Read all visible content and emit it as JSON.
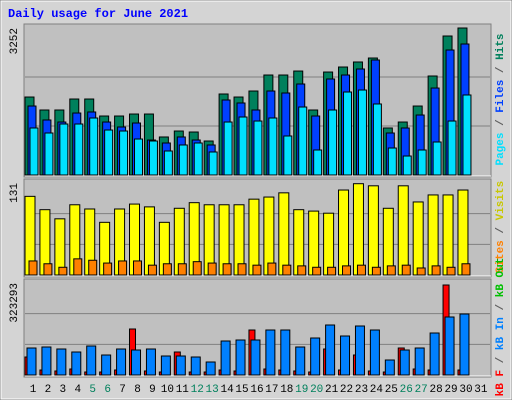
{
  "chart_data": [
    {
      "type": "bar",
      "title": "Daily usage for June 2021",
      "ylim": [
        0,
        3252
      ],
      "yticks": [
        3252
      ],
      "grid_lines": [
        1084,
        2168
      ],
      "legend_separator": " / ",
      "series": [
        {
          "name": "Pages",
          "color": "#00e0ff",
          "values": [
            1040,
            929,
            1128,
            1128,
            1261,
            995,
            973,
            796,
            752,
            531,
            664,
            708,
            509,
            1172,
            1283,
            1194,
            1261,
            863,
            1504,
            553,
            1438,
            1836,
            1880,
            1571,
            597,
            420,
            553,
            730,
            1194,
            1770,
            null
          ]
        },
        {
          "name": "Files",
          "color": "#0040ff",
          "values": [
            1526,
            1217,
            1172,
            1371,
            1394,
            1172,
            1062,
            1150,
            774,
            708,
            841,
            774,
            664,
            1659,
            1593,
            1438,
            1858,
            1814,
            2013,
            1305,
            2124,
            2212,
            2345,
            2544,
            929,
            1040,
            1327,
            1924,
            2765,
            2898,
            null
          ]
        },
        {
          "name": "Hits",
          "color": "#00805c",
          "values": [
            1725,
            1438,
            1438,
            1681,
            1681,
            1305,
            1305,
            1349,
            1349,
            841,
            973,
            951,
            752,
            1792,
            1725,
            1858,
            2212,
            2212,
            2300,
            1438,
            2278,
            2389,
            2500,
            2588,
            1040,
            1172,
            1526,
            2190,
            3075,
            3252,
            null
          ]
        }
      ]
    },
    {
      "type": "bar",
      "ylim": [
        0,
        131
      ],
      "yticks": [
        131
      ],
      "grid_lines": [
        43.67,
        87.33
      ],
      "legend_separator": " / ",
      "series": [
        {
          "name": "Sites",
          "color": "#ff8000",
          "values": [
            20,
            16,
            11,
            23,
            21,
            17,
            20,
            20,
            14,
            16,
            16,
            19,
            17,
            16,
            16,
            14,
            17,
            14,
            13,
            11,
            11,
            13,
            14,
            11,
            13,
            14,
            10,
            13,
            11,
            16,
            null
          ]
        },
        {
          "name": "Visits",
          "color": "#ffff00",
          "values": [
            112,
            93,
            80,
            100,
            94,
            75,
            94,
            101,
            97,
            75,
            95,
            103,
            100,
            100,
            100,
            108,
            111,
            117,
            93,
            91,
            88,
            121,
            130,
            127,
            95,
            127,
            104,
            114,
            114,
            121,
            null
          ]
        }
      ]
    },
    {
      "type": "bar",
      "ylim": [
        0,
        323293
      ],
      "yticks": [
        323293
      ],
      "grid_lines": [
        107764,
        215529
      ],
      "legend_separator": " / ",
      "categories": [
        "1",
        "2",
        "3",
        "4",
        "5",
        "6",
        "7",
        "8",
        "9",
        "10",
        "11",
        "12",
        "13",
        "14",
        "15",
        "16",
        "17",
        "18",
        "19",
        "20",
        "21",
        "22",
        "23",
        "24",
        "25",
        "26",
        "27",
        "28",
        "29",
        "30",
        "31"
      ],
      "category_colors": [
        "#000000",
        "#000000",
        "#000000",
        "#000000",
        "#00805c",
        "#00805c",
        "#000000",
        "#000000",
        "#000000",
        "#000000",
        "#000000",
        "#00805c",
        "#00805c",
        "#000000",
        "#000000",
        "#000000",
        "#000000",
        "#000000",
        "#00805c",
        "#00805c",
        "#000000",
        "#000000",
        "#000000",
        "#000000",
        "#000000",
        "#00805c",
        "#00805c",
        "#000000",
        "#000000",
        "#000000",
        "#000000"
      ],
      "series": [
        {
          "name": "kB F",
          "color": "#ff0000",
          "values": [
            63252,
            17570,
            14056,
            21084,
            10542,
            10542,
            17570,
            161644,
            14056,
            10542,
            80822,
            10542,
            10542,
            17570,
            14056,
            158130,
            21084,
            17570,
            14056,
            10542,
            91364,
            17570,
            70280,
            14056,
            10542,
            94878,
            21084,
            17570,
            316260,
            17570,
            null
          ]
        },
        {
          "name": "kB In",
          "color": "#0080ff",
          "values": [
            94878,
            98392,
            91364,
            80822,
            101906,
            70280,
            91364,
            87850,
            91364,
            66766,
            66766,
            63252,
            45682,
            119476,
            122990,
            122990,
            158130,
            158130,
            98392,
            130018,
            175700,
            137046,
            172186,
            158130,
            52710,
            87850,
            94878,
            147588,
            203812,
            214354,
            null
          ]
        },
        {
          "name": "kB Out",
          "color": "#00c000",
          "values": [
            0,
            0,
            0,
            0,
            0,
            0,
            0,
            0,
            0,
            0,
            0,
            0,
            0,
            0,
            0,
            0,
            0,
            0,
            0,
            0,
            0,
            0,
            0,
            0,
            0,
            0,
            0,
            0,
            0,
            0,
            null
          ]
        }
      ]
    }
  ]
}
